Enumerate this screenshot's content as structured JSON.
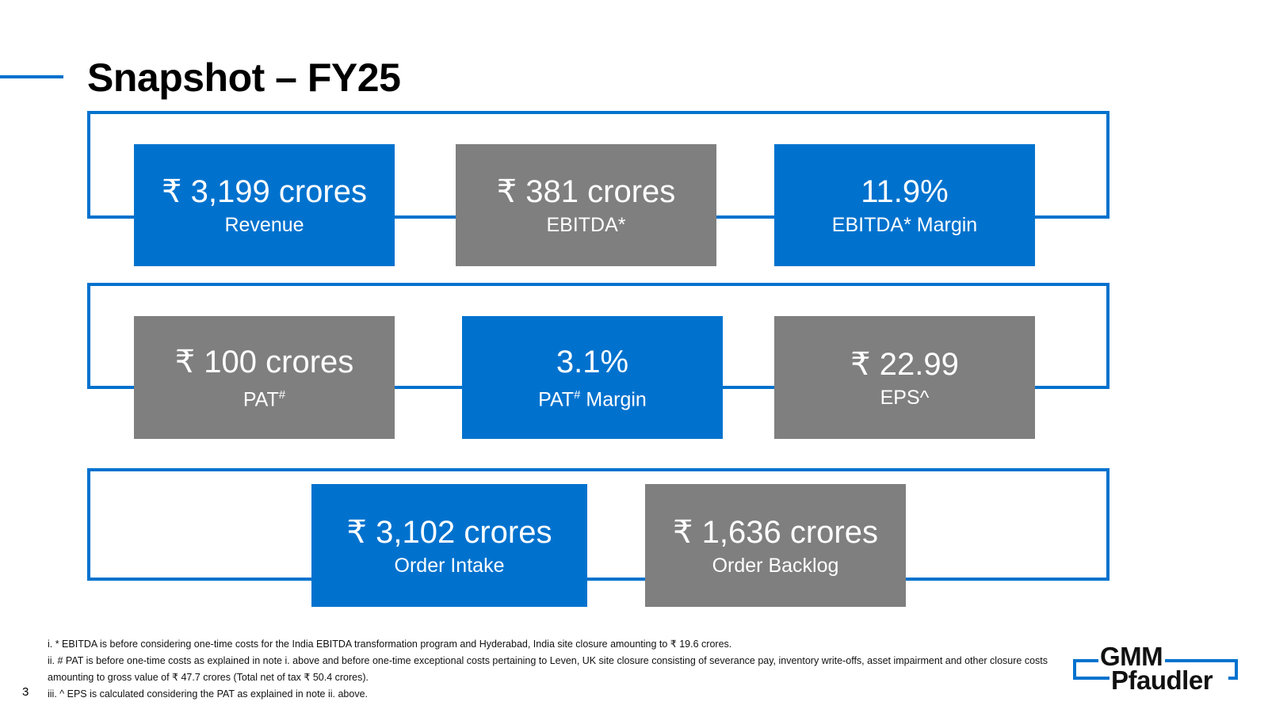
{
  "slide": {
    "title": "Snapshot – FY25",
    "page_number": "3"
  },
  "metrics": {
    "revenue": {
      "value": "₹ 3,199 crores",
      "label": "Revenue"
    },
    "ebitda": {
      "value": "₹ 381 crores",
      "label": "EBITDA*"
    },
    "ebitda_margin": {
      "value": "11.9%",
      "label": "EBITDA* Margin"
    },
    "pat": {
      "value": "₹ 100 crores",
      "label": "PAT",
      "label_sup": "#"
    },
    "pat_margin": {
      "value": "3.1%",
      "label": "PAT",
      "label_sup": "#",
      "label_suffix": " Margin"
    },
    "eps": {
      "value": "₹ 22.99",
      "label": "EPS^"
    },
    "order_intake": {
      "value": "₹ 3,102 crores",
      "label": "Order Intake"
    },
    "order_backlog": {
      "value": "₹ 1,636 crores",
      "label": "Order Backlog"
    }
  },
  "footnotes": [
    "i. * EBITDA is before considering one-time costs for the India EBITDA transformation program and Hyderabad, India site closure amounting to ₹ 19.6 crores.",
    "ii. # PAT is before one-time costs as explained in note i. above and before one-time exceptional costs pertaining to Leven, UK site closure consisting of severance pay, inventory write-offs, asset impairment and other closure costs amounting to gross value of ₹ 47.7 crores (Total net of tax ₹ 50.4 crores).",
    "iii. ^ EPS is calculated considering the PAT as explained in note ii. above."
  ],
  "logo": {
    "line1": "GMM",
    "line2": "Pfaudler"
  },
  "colors": {
    "accent_blue": "#0072CE",
    "box_grey": "#7F7F7F"
  }
}
